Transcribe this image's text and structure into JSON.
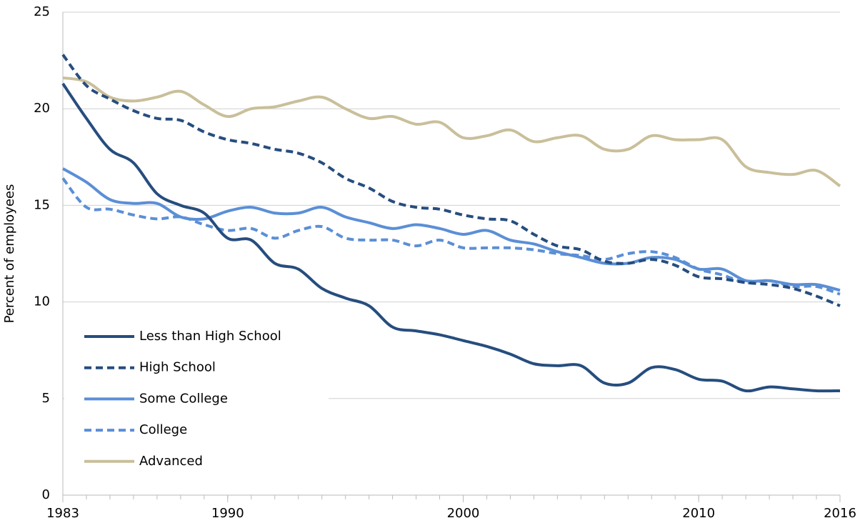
{
  "chart_data": {
    "type": "line",
    "y_label": "Percent of employees",
    "x": [
      1983,
      1984,
      1985,
      1986,
      1987,
      1988,
      1989,
      1990,
      1991,
      1992,
      1993,
      1994,
      1995,
      1996,
      1997,
      1998,
      1999,
      2000,
      2001,
      2002,
      2003,
      2004,
      2005,
      2006,
      2007,
      2008,
      2009,
      2010,
      2011,
      2012,
      2013,
      2014,
      2015,
      2016
    ],
    "xlim": [
      1983,
      2016
    ],
    "xticks": [
      1983,
      1990,
      2000,
      2010,
      2016
    ],
    "ylim": [
      0,
      25
    ],
    "yticks": [
      0,
      5,
      10,
      15,
      20,
      25
    ],
    "grid": true,
    "legend": "lower left",
    "series": [
      {
        "name": "Less than High School",
        "color": "#264d7e",
        "style": "solid",
        "values": [
          21.3,
          19.5,
          17.9,
          17.2,
          15.6,
          15.0,
          14.6,
          13.3,
          13.2,
          12.0,
          11.7,
          10.7,
          10.2,
          9.8,
          8.7,
          8.5,
          8.3,
          8.0,
          7.7,
          7.3,
          6.8,
          6.7,
          6.7,
          5.8,
          5.8,
          6.6,
          6.5,
          6.0,
          5.9,
          5.4,
          5.6,
          5.5,
          5.4,
          5.4
        ]
      },
      {
        "name": "High School",
        "color": "#264d7e",
        "style": "dash",
        "values": [
          22.8,
          21.2,
          20.5,
          19.9,
          19.5,
          19.4,
          18.8,
          18.4,
          18.2,
          17.9,
          17.7,
          17.2,
          16.4,
          15.9,
          15.2,
          14.9,
          14.8,
          14.5,
          14.3,
          14.2,
          13.5,
          12.9,
          12.7,
          12.1,
          12.0,
          12.2,
          11.9,
          11.3,
          11.2,
          11.0,
          10.9,
          10.7,
          10.3,
          9.8
        ]
      },
      {
        "name": "Some College",
        "color": "#5b8fd6",
        "style": "solid",
        "values": [
          16.9,
          16.2,
          15.3,
          15.1,
          15.1,
          14.4,
          14.3,
          14.7,
          14.9,
          14.6,
          14.6,
          14.9,
          14.4,
          14.1,
          13.8,
          14.0,
          13.8,
          13.5,
          13.7,
          13.2,
          13.0,
          12.6,
          12.3,
          12.0,
          12.0,
          12.3,
          12.2,
          11.7,
          11.7,
          11.1,
          11.1,
          10.9,
          10.9,
          10.6
        ]
      },
      {
        "name": "College",
        "color": "#5b8fd6",
        "style": "dash",
        "values": [
          16.4,
          14.9,
          14.8,
          14.5,
          14.3,
          14.4,
          14.0,
          13.7,
          13.8,
          13.3,
          13.7,
          13.9,
          13.3,
          13.2,
          13.2,
          12.9,
          13.2,
          12.8,
          12.8,
          12.8,
          12.7,
          12.5,
          12.4,
          12.2,
          12.5,
          12.6,
          12.3,
          11.7,
          11.4,
          11.0,
          11.1,
          10.8,
          10.8,
          10.4
        ]
      },
      {
        "name": "Advanced",
        "color": "#c9bf9a",
        "style": "solid",
        "values": [
          21.6,
          21.4,
          20.6,
          20.4,
          20.6,
          20.9,
          20.2,
          19.6,
          20.0,
          20.1,
          20.4,
          20.6,
          20.0,
          19.5,
          19.6,
          19.2,
          19.3,
          18.5,
          18.6,
          18.9,
          18.3,
          18.5,
          18.6,
          17.9,
          17.9,
          18.6,
          18.4,
          18.4,
          18.4,
          17.0,
          16.7,
          16.6,
          16.8,
          16.0
        ]
      }
    ]
  }
}
